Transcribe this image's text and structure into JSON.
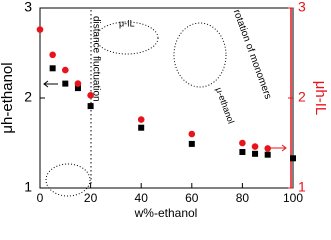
{
  "chart_data": {
    "type": "scatter",
    "x_label": "w%-ethanol",
    "y_label": "μh-ethanol",
    "y2_label": "μh-IL",
    "xlim": [
      0,
      100
    ],
    "xticks": [
      0,
      20,
      40,
      60,
      80,
      100
    ],
    "ylim": [
      1,
      3
    ],
    "yticks": [
      1,
      2,
      3
    ],
    "y2lim": [
      1,
      3
    ],
    "y2ticks": [
      1,
      2,
      3
    ],
    "annotations": [
      "μ-IL",
      "distance fluctuation",
      "μ-ethanol",
      "rotation of monomers"
    ],
    "series": [
      {
        "name": "μh-ethanol",
        "color": "#000000",
        "marker": "square",
        "x": [
          5,
          10,
          15,
          20,
          40,
          60,
          80,
          85,
          90,
          100
        ],
        "values": [
          2.33,
          2.16,
          2.11,
          1.91,
          1.67,
          1.49,
          1.4,
          1.38,
          1.37,
          1.33
        ]
      },
      {
        "name": "μh-IL",
        "color": "#e8141c",
        "marker": "circle",
        "axis": "y2",
        "x": [
          0,
          5,
          10,
          15,
          20,
          40,
          60,
          80,
          85,
          90
        ],
        "values": [
          2.76,
          2.48,
          2.31,
          2.16,
          2.03,
          1.76,
          1.6,
          1.5,
          1.46,
          1.44
        ]
      }
    ]
  }
}
